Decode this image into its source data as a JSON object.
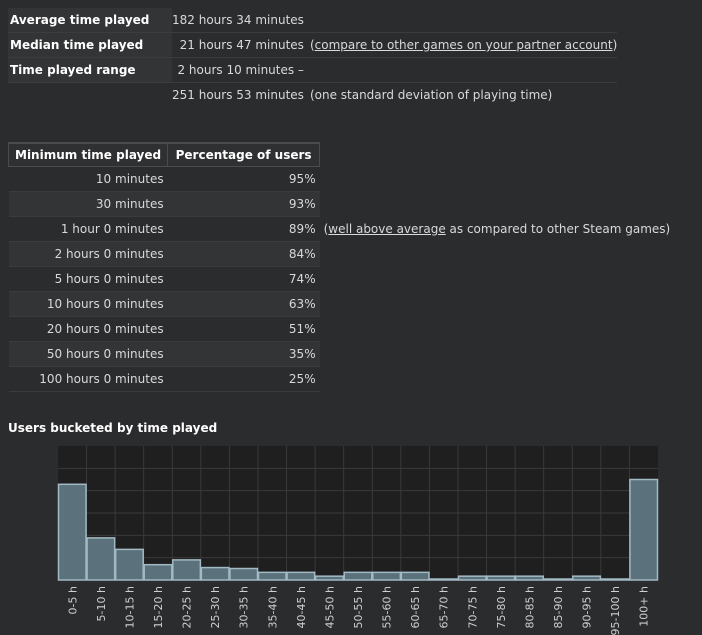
{
  "summary": {
    "average_label": "Average time played",
    "average_value": "182 hours 34 minutes",
    "median_label": "Median time played",
    "median_value": "21 hours 47 minutes",
    "median_note_prefix": "(",
    "median_note_link": "compare to other games on your partner account",
    "median_note_suffix": ")",
    "range_label": "Time played range",
    "range_value_1": "2 hours 10 minutes –",
    "range_value_2": "251 hours 53 minutes",
    "range_note": "(one standard deviation of playing time)"
  },
  "thresholds": {
    "col_min": "Minimum time played",
    "col_pct": "Percentage of users",
    "rows": [
      {
        "time": "10 minutes",
        "pct": "95%"
      },
      {
        "time": "30 minutes",
        "pct": "93%"
      },
      {
        "time": "1 hour 0 minutes",
        "pct": "89%",
        "note_prefix": "(",
        "note_link": "well above average",
        "note_suffix": " as compared to other Steam games)"
      },
      {
        "time": "2 hours 0 minutes",
        "pct": "84%"
      },
      {
        "time": "5 hours 0 minutes",
        "pct": "74%"
      },
      {
        "time": "10 hours 0 minutes",
        "pct": "63%"
      },
      {
        "time": "20 hours 0 minutes",
        "pct": "51%"
      },
      {
        "time": "50 hours 0 minutes",
        "pct": "35%"
      },
      {
        "time": "100 hours 0 minutes",
        "pct": "25%"
      }
    ]
  },
  "chart_title": "Users bucketed by time played",
  "chart_data": {
    "type": "bar",
    "title": "Users bucketed by time played",
    "xlabel": "",
    "ylabel": "",
    "categories": [
      "0-5 h",
      "5-10 h",
      "10-15 h",
      "15-20 h",
      "20-25 h",
      "25-30 h",
      "30-35 h",
      "35-40 h",
      "40-45 h",
      "45-50 h",
      "50-55 h",
      "55-60 h",
      "60-65 h",
      "65-70 h",
      "70-75 h",
      "75-80 h",
      "80-85 h",
      "85-90 h",
      "90-95 h",
      "95-100 h",
      "100+ h"
    ],
    "values": [
      100,
      44,
      32,
      16,
      21,
      13,
      12,
      8,
      8,
      4,
      8,
      8,
      8,
      0,
      4,
      4,
      4,
      1,
      4,
      1,
      105
    ],
    "ylim": [
      0,
      140
    ],
    "grid": true,
    "bar_color": "#5b727d",
    "bar_edge": "#a3b9c4",
    "bg_color": "#1f1f1f",
    "grid_color": "#3a3a3a"
  }
}
